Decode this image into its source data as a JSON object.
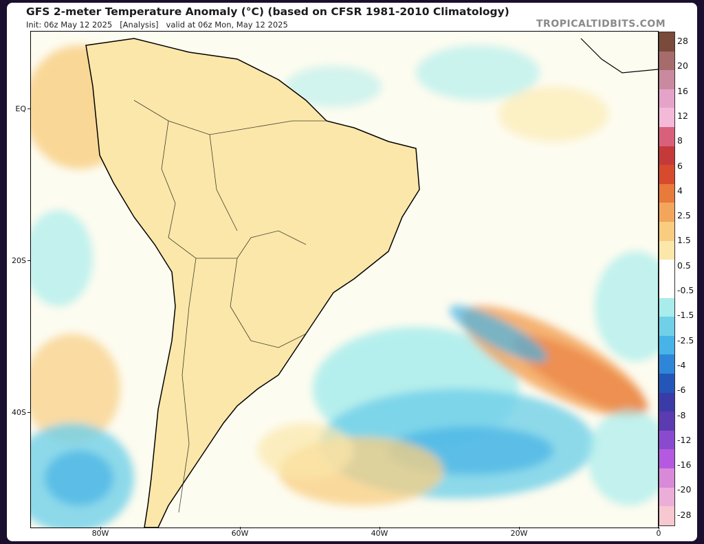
{
  "header": {
    "title": "GFS 2-meter Temperature Anomaly (°C) (based on CFSR 1981-2010 Climatology)",
    "subtitle": "Init: 06z May 12 2025   [Analysis]   valid at 06z Mon, May 12 2025",
    "credit": "TROPICALTIDBITS.COM"
  },
  "axes": {
    "lat_labels": [
      "EQ",
      "20S",
      "40S"
    ],
    "lon_labels": [
      "80W",
      "60W",
      "40W",
      "20W",
      "0"
    ]
  },
  "legend": {
    "labels": [
      "28",
      "20",
      "16",
      "12",
      "8",
      "6",
      "4",
      "2.5",
      "1.5",
      "0.5",
      "-0.5",
      "-1.5",
      "-2.5",
      "-4",
      "-6",
      "-8",
      "-12",
      "-16",
      "-20",
      "-28"
    ],
    "colors": [
      "#7a4a3a",
      "#a66b6b",
      "#c98aa0",
      "#e6a3c9",
      "#f3b9d9",
      "#d9607a",
      "#c43a3a",
      "#d84a2e",
      "#e87a3a",
      "#f3a55c",
      "#f8cd80",
      "#fbe7a9",
      "#ffffff",
      "#ffffff",
      "#a8ecec",
      "#6fd0e8",
      "#47b3e6",
      "#2f86d8",
      "#2356b8",
      "#3b3ba8",
      "#5a3bb0",
      "#8a4ad0",
      "#b55ae0",
      "#d88ad8",
      "#ecaed8",
      "#f7c8cf"
    ]
  },
  "map": {
    "colors": {
      "ocean_base": "#fdfcf0",
      "warm_light": "#f8cd80",
      "warm_mid": "#e87a3a",
      "warm_strong": "#c43a3a",
      "warm_pink": "#e6a3c9",
      "cool_light": "#a8ecec",
      "cool_mid": "#47b3e6",
      "cool_strong": "#2356b8",
      "coast": "#000000"
    }
  }
}
